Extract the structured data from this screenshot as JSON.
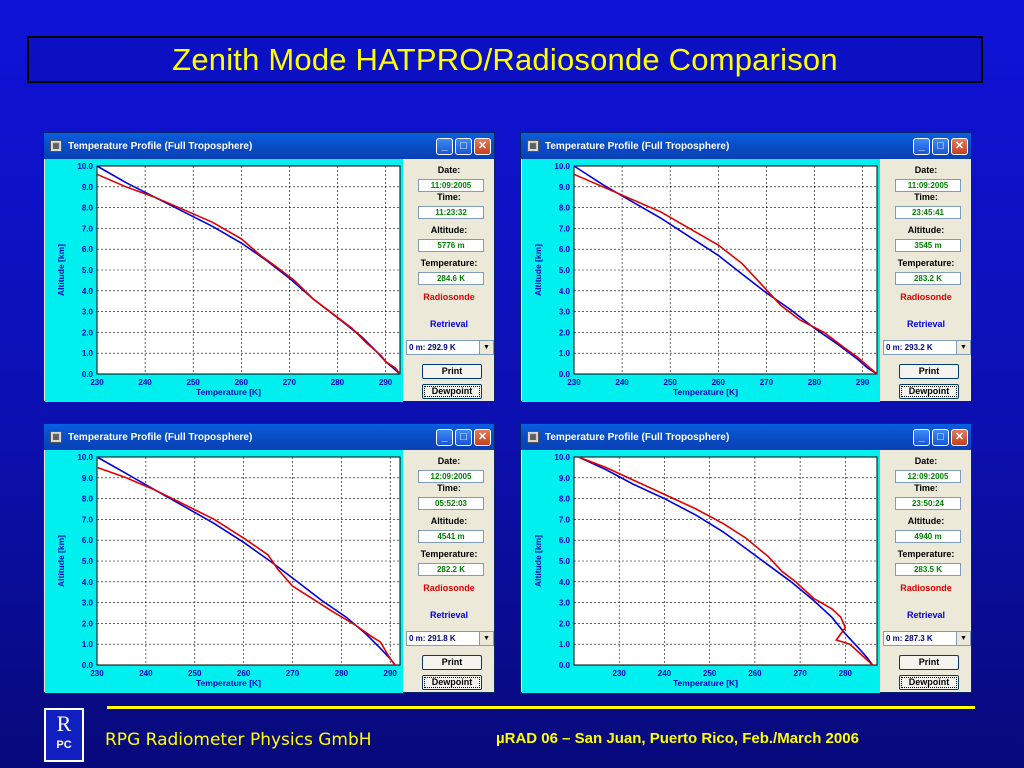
{
  "slide": {
    "title": "Zenith Mode HATPRO/Radiosonde Comparison",
    "footer_company": "RPG Radiometer Physics GmbH",
    "footer_conference": "µRAD 06  – San Juan, Puerto Rico,  Feb./March  2006",
    "logo_top": "R",
    "logo_bottom": "PC",
    "colors": {
      "background": "#0c10b0",
      "title_text": "#ffff00",
      "footer_line": "#ffff00"
    }
  },
  "window_common": {
    "title": "Temperature Profile (Full Troposphere)",
    "date_label": "Date:",
    "time_label": "Time:",
    "altitude_label": "Altitude:",
    "temperature_label": "Temperature:",
    "legend_radiosonde": "Radiosonde",
    "legend_retrieval": "Retrieval",
    "print_label": "Print",
    "dewpoint_label": "Dewpoint",
    "xlabel": "Temperature [K]",
    "ylabel": "Altitude [km]",
    "icons": [
      "minimize-icon",
      "maximize-icon",
      "close-icon"
    ]
  },
  "windows": [
    {
      "date": "11:09:2005",
      "time": "11:23:32",
      "altitude": "5776 m",
      "temperature": "284.6 K",
      "select": "0 m: 292.9 K"
    },
    {
      "date": "11:09:2005",
      "time": "23:45:41",
      "altitude": "3545 m",
      "temperature": "283.2 K",
      "select": "0 m: 293.2 K"
    },
    {
      "date": "12:09:2005",
      "time": "05:52:03",
      "altitude": "4541 m",
      "temperature": "282.2 K",
      "select": "0 m: 291.8 K"
    },
    {
      "date": "12:09:2005",
      "time": "23:50:24",
      "altitude": "4940 m",
      "temperature": "283.5 K",
      "select": "0 m: 287.3 K"
    }
  ],
  "chart_data": [
    {
      "type": "line",
      "xlabel": "Temperature [K]",
      "ylabel": "Altitude [km]",
      "xlim": [
        230,
        293
      ],
      "ylim": [
        0,
        10
      ],
      "xticks": [
        230,
        240,
        250,
        260,
        270,
        280,
        290
      ],
      "yticks": [
        0.0,
        1.0,
        2.0,
        3.0,
        4.0,
        5.0,
        6.0,
        7.0,
        8.0,
        9.0,
        10.0
      ],
      "grid": true,
      "series": [
        {
          "name": "Radiosonde",
          "color": "#e00000",
          "points": [
            [
              230,
              9.6
            ],
            [
              236,
              9.0
            ],
            [
              242,
              8.5
            ],
            [
              248,
              7.9
            ],
            [
              254,
              7.3
            ],
            [
              260,
              6.5
            ],
            [
              264,
              5.7
            ],
            [
              267,
              5.2
            ],
            [
              271,
              4.5
            ],
            [
              275,
              3.6
            ],
            [
              279,
              2.9
            ],
            [
              283,
              2.2
            ],
            [
              286,
              1.5
            ],
            [
              289,
              0.9
            ],
            [
              290,
              0.6
            ],
            [
              292,
              0.3
            ],
            [
              293,
              0.0
            ]
          ]
        },
        {
          "name": "Retrieval",
          "color": "#0000e0",
          "points": [
            [
              230,
              10.0
            ],
            [
              236,
              9.2
            ],
            [
              242,
              8.5
            ],
            [
              248,
              7.8
            ],
            [
              254,
              7.1
            ],
            [
              260,
              6.3
            ],
            [
              265,
              5.5
            ],
            [
              270,
              4.6
            ],
            [
              275,
              3.6
            ],
            [
              280,
              2.7
            ],
            [
              285,
              1.8
            ],
            [
              288,
              1.1
            ],
            [
              290,
              0.6
            ],
            [
              292,
              0.2
            ],
            [
              293,
              0.0
            ]
          ]
        }
      ]
    },
    {
      "type": "line",
      "xlabel": "Temperature [K]",
      "ylabel": "Altitude [km]",
      "xlim": [
        230,
        293
      ],
      "ylim": [
        0,
        10
      ],
      "xticks": [
        230,
        240,
        250,
        260,
        270,
        280,
        290
      ],
      "yticks": [
        0.0,
        1.0,
        2.0,
        3.0,
        4.0,
        5.0,
        6.0,
        7.0,
        8.0,
        9.0,
        10.0
      ],
      "grid": true,
      "series": [
        {
          "name": "Radiosonde",
          "color": "#e00000",
          "points": [
            [
              230,
              9.6
            ],
            [
              236,
              9.0
            ],
            [
              242,
              8.4
            ],
            [
              248,
              7.8
            ],
            [
              254,
              7.0
            ],
            [
              260,
              6.2
            ],
            [
              265,
              5.3
            ],
            [
              269,
              4.3
            ],
            [
              273,
              3.3
            ],
            [
              277,
              2.6
            ],
            [
              282,
              2.0
            ],
            [
              286,
              1.3
            ],
            [
              289,
              0.8
            ],
            [
              291,
              0.4
            ],
            [
              293,
              0.0
            ]
          ]
        },
        {
          "name": "Retrieval",
          "color": "#0000e0",
          "points": [
            [
              230,
              10.0
            ],
            [
              236,
              9.1
            ],
            [
              242,
              8.3
            ],
            [
              248,
              7.5
            ],
            [
              254,
              6.6
            ],
            [
              260,
              5.7
            ],
            [
              265,
              4.8
            ],
            [
              270,
              3.9
            ],
            [
              275,
              3.1
            ],
            [
              280,
              2.2
            ],
            [
              285,
              1.4
            ],
            [
              289,
              0.7
            ],
            [
              291,
              0.3
            ],
            [
              293,
              0.0
            ]
          ]
        }
      ]
    },
    {
      "type": "line",
      "xlabel": "Temperature [K]",
      "ylabel": "Altitude [km]",
      "xlim": [
        230,
        292
      ],
      "ylim": [
        0,
        10
      ],
      "xticks": [
        230,
        240,
        250,
        260,
        270,
        280,
        290
      ],
      "yticks": [
        0.0,
        1.0,
        2.0,
        3.0,
        4.0,
        5.0,
        6.0,
        7.0,
        8.0,
        9.0,
        10.0
      ],
      "grid": true,
      "series": [
        {
          "name": "Radiosonde",
          "color": "#e00000",
          "points": [
            [
              230,
              9.5
            ],
            [
              236,
              9.0
            ],
            [
              242,
              8.4
            ],
            [
              248,
              7.7
            ],
            [
              254,
              7.0
            ],
            [
              260,
              6.1
            ],
            [
              265,
              5.3
            ],
            [
              267,
              4.6
            ],
            [
              270,
              3.8
            ],
            [
              274,
              3.2
            ],
            [
              278,
              2.6
            ],
            [
              283,
              1.9
            ],
            [
              286,
              1.4
            ],
            [
              288,
              1.1
            ],
            [
              289,
              0.7
            ],
            [
              290,
              0.3
            ],
            [
              291,
              0.0
            ]
          ]
        },
        {
          "name": "Retrieval",
          "color": "#0000e0",
          "points": [
            [
              230,
              10.0
            ],
            [
              236,
              9.2
            ],
            [
              242,
              8.4
            ],
            [
              248,
              7.6
            ],
            [
              254,
              6.8
            ],
            [
              260,
              5.9
            ],
            [
              266,
              4.9
            ],
            [
              271,
              4.0
            ],
            [
              276,
              3.1
            ],
            [
              281,
              2.3
            ],
            [
              285,
              1.5
            ],
            [
              288,
              0.8
            ],
            [
              290,
              0.3
            ],
            [
              291,
              0.0
            ]
          ]
        }
      ]
    },
    {
      "type": "line",
      "xlabel": "Temperature [K]",
      "ylabel": "Altitude [km]",
      "xlim": [
        220,
        287
      ],
      "ylim": [
        0,
        10
      ],
      "xticks": [
        230,
        240,
        250,
        260,
        270,
        280
      ],
      "yticks": [
        0.0,
        1.0,
        2.0,
        3.0,
        4.0,
        5.0,
        6.0,
        7.0,
        8.0,
        9.0,
        10.0
      ],
      "grid": true,
      "series": [
        {
          "name": "Radiosonde",
          "color": "#e00000",
          "points": [
            [
              221,
              10.0
            ],
            [
              227,
              9.5
            ],
            [
              233,
              8.9
            ],
            [
              240,
              8.2
            ],
            [
              247,
              7.5
            ],
            [
              253,
              6.8
            ],
            [
              258,
              6.1
            ],
            [
              263,
              5.2
            ],
            [
              266,
              4.5
            ],
            [
              269,
              4.0
            ],
            [
              273,
              3.2
            ],
            [
              277,
              2.7
            ],
            [
              279,
              2.3
            ],
            [
              280,
              1.8
            ],
            [
              278,
              1.2
            ],
            [
              281,
              1.0
            ],
            [
              283,
              0.6
            ],
            [
              285,
              0.2
            ],
            [
              286,
              0.0
            ]
          ]
        },
        {
          "name": "Retrieval",
          "color": "#0000e0",
          "points": [
            [
              221,
              10.0
            ],
            [
              227,
              9.4
            ],
            [
              233,
              8.7
            ],
            [
              240,
              8.0
            ],
            [
              247,
              7.2
            ],
            [
              253,
              6.4
            ],
            [
              258,
              5.6
            ],
            [
              263,
              4.8
            ],
            [
              268,
              4.0
            ],
            [
              273,
              3.1
            ],
            [
              277,
              2.3
            ],
            [
              280,
              1.5
            ],
            [
              283,
              0.8
            ],
            [
              285,
              0.3
            ],
            [
              286,
              0.0
            ]
          ]
        }
      ]
    }
  ]
}
